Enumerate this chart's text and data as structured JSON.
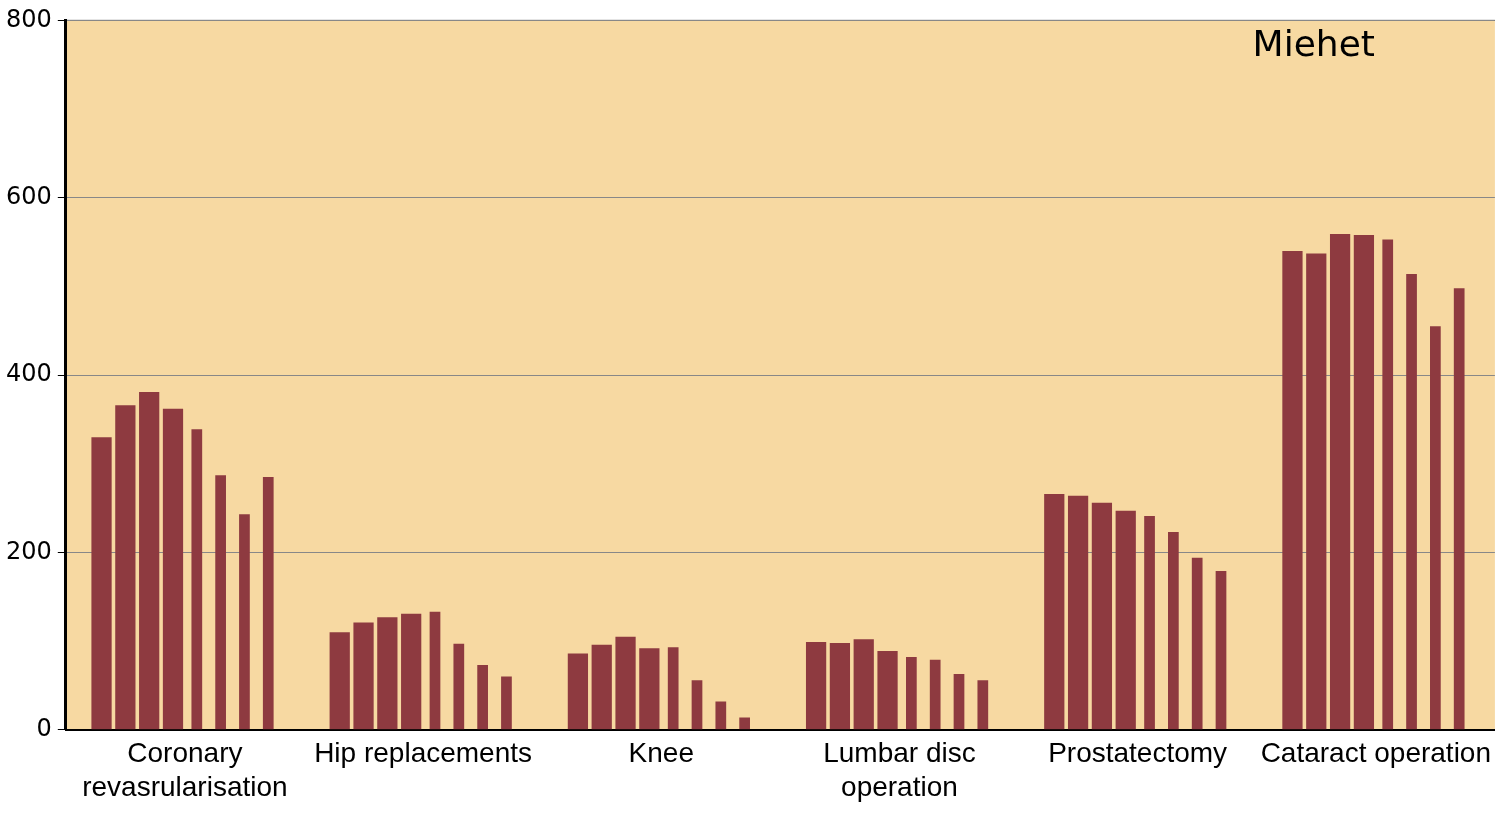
{
  "chart_data": {
    "type": "bar",
    "title": "Miehet",
    "categories": [
      "Coronary revasrularisation",
      "Hip replacements",
      "Knee",
      "Lumbar disc operation",
      "Prostatectomy",
      "Cataract operation"
    ],
    "series": [
      {
        "color": "#8e3a40",
        "values": [
          330,
          110,
          86,
          99,
          266,
          540
        ]
      },
      {
        "color": "#8e3a40",
        "values": [
          366,
          121,
          96,
          98,
          264,
          537
        ]
      },
      {
        "color": "#8e3a40",
        "values": [
          381,
          127,
          105,
          102,
          256,
          559
        ]
      },
      {
        "color": "#8e3a40",
        "values": [
          362,
          131,
          92,
          89,
          247,
          558
        ]
      },
      {
        "color": "#8e3a40",
        "values": [
          339,
          133,
          93,
          82,
          241,
          553
        ]
      },
      {
        "color": "#8e3a40",
        "values": [
          287,
          97,
          56,
          79,
          223,
          514
        ]
      },
      {
        "color": "#8e3a40",
        "values": [
          243,
          73,
          32,
          63,
          194,
          455
        ]
      },
      {
        "color": "#8e3a40",
        "values": [
          285,
          60,
          14,
          56,
          179,
          498
        ]
      }
    ],
    "ylim": [
      0,
      800
    ],
    "yticks": [
      0,
      200,
      400,
      600,
      800
    ],
    "grid": "y",
    "legend": false
  }
}
